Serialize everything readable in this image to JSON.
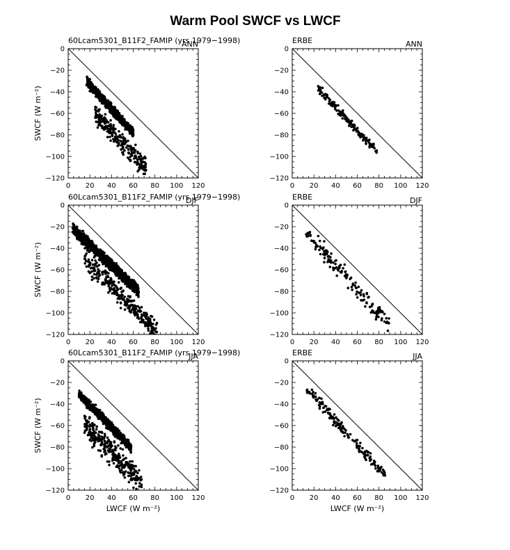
{
  "figure": {
    "title": "Warm Pool SWCF vs LWCF",
    "y_axis_label": "SWCF (W m⁻²)",
    "x_axis_label": "LWCF (W m⁻²)",
    "marker_color": "#000000",
    "line_color": "#000000"
  },
  "chart_data": [
    {
      "type": "scatter",
      "title_left": "60Lcam5301_B11F2_FAMIP (yrs 1979-1998)",
      "title_right": "ANN",
      "ylabel": "SWCF (W m⁻²)",
      "xlabel": "",
      "xlim": [
        0,
        120
      ],
      "ylim": [
        -120,
        0
      ],
      "xticks": [
        0,
        20,
        40,
        60,
        80,
        100,
        120
      ],
      "yticks": [
        0,
        -20,
        -40,
        -60,
        -80,
        -100,
        -120
      ],
      "reference_line": "y = -x",
      "clusters": [
        {
          "n": 700,
          "x_range": [
            17,
            60
          ],
          "intercept": -12,
          "slope": -1.1,
          "spread": 4,
          "seed": 11
        },
        {
          "n": 250,
          "x_range": [
            25,
            72
          ],
          "intercept": -35,
          "slope": -1.05,
          "spread": 9,
          "seed": 12
        }
      ]
    },
    {
      "type": "scatter",
      "title_left": "ERBE",
      "title_right": "ANN",
      "ylabel": "",
      "xlabel": "",
      "xlim": [
        0,
        120
      ],
      "ylim": [
        -120,
        0
      ],
      "xticks": [
        0,
        20,
        40,
        60,
        80,
        100,
        120
      ],
      "yticks": [
        0,
        -20,
        -40,
        -60,
        -80,
        -100,
        -120
      ],
      "reference_line": "y = -x",
      "clusters": [
        {
          "n": 170,
          "x_range": [
            24,
            78
          ],
          "intercept": -10,
          "slope": -1.1,
          "spread": 3.5,
          "seed": 21
        }
      ]
    },
    {
      "type": "scatter",
      "title_left": "60Lcam5301_B11F2_FAMIP (yrs 1979-1998)",
      "title_right": "DJF",
      "ylabel": "SWCF (W m⁻²)",
      "xlabel": "",
      "xlim": [
        0,
        120
      ],
      "ylim": [
        -120,
        0
      ],
      "xticks": [
        0,
        20,
        40,
        60,
        80,
        100,
        120
      ],
      "yticks": [
        0,
        -20,
        -40,
        -60,
        -80,
        -100,
        -120
      ],
      "reference_line": "y = -x",
      "clusters": [
        {
          "n": 1100,
          "x_range": [
            4,
            65
          ],
          "intercept": -18,
          "slope": -0.95,
          "spread": 5,
          "seed": 31
        },
        {
          "n": 300,
          "x_range": [
            15,
            82
          ],
          "intercept": -35,
          "slope": -1.0,
          "spread": 9,
          "seed": 32
        }
      ]
    },
    {
      "type": "scatter",
      "title_left": "ERBE",
      "title_right": "DJF",
      "ylabel": "",
      "xlabel": "",
      "xlim": [
        0,
        120
      ],
      "ylim": [
        -120,
        0
      ],
      "xticks": [
        0,
        20,
        40,
        60,
        80,
        100,
        120
      ],
      "yticks": [
        0,
        -20,
        -40,
        -60,
        -80,
        -100,
        -120
      ],
      "reference_line": "y = -x",
      "clusters": [
        {
          "n": 150,
          "x_range": [
            12,
            90
          ],
          "intercept": -12,
          "slope": -1.1,
          "spread": 8,
          "seed": 41
        }
      ]
    },
    {
      "type": "scatter",
      "title_left": "60Lcam5301_B11F2_FAMIP (yrs 1979-1998)",
      "title_right": "JJA",
      "ylabel": "SWCF (W m⁻²)",
      "xlabel": "LWCF (W m⁻²)",
      "xlim": [
        0,
        120
      ],
      "ylim": [
        -120,
        0
      ],
      "xticks": [
        0,
        20,
        40,
        60,
        80,
        100,
        120
      ],
      "yticks": [
        0,
        -20,
        -40,
        -60,
        -80,
        -100,
        -120
      ],
      "reference_line": "y = -x",
      "clusters": [
        {
          "n": 700,
          "x_range": [
            10,
            58
          ],
          "intercept": -20,
          "slope": -1.05,
          "spread": 4,
          "seed": 51
        },
        {
          "n": 300,
          "x_range": [
            15,
            68
          ],
          "intercept": -42,
          "slope": -1.05,
          "spread": 12,
          "seed": 52
        }
      ]
    },
    {
      "type": "scatter",
      "title_left": "ERBE",
      "title_right": "JJA",
      "ylabel": "",
      "xlabel": "LWCF (W m⁻²)",
      "xlim": [
        0,
        120
      ],
      "ylim": [
        -120,
        0
      ],
      "xticks": [
        0,
        20,
        40,
        60,
        80,
        100,
        120
      ],
      "yticks": [
        0,
        -20,
        -40,
        -60,
        -80,
        -100,
        -120
      ],
      "reference_line": "y = -x",
      "clusters": [
        {
          "n": 170,
          "x_range": [
            12,
            86
          ],
          "intercept": -12,
          "slope": -1.1,
          "spread": 5,
          "seed": 61
        }
      ]
    }
  ]
}
